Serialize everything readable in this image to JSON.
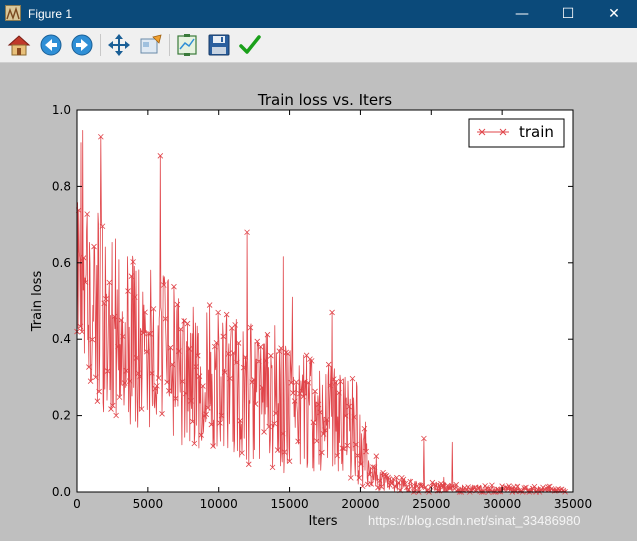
{
  "window": {
    "title": "Figure 1",
    "controls": {
      "minimize": "—",
      "maximize": "☐",
      "close": "✕"
    }
  },
  "toolbar": {
    "items": [
      {
        "name": "home-icon",
        "tooltip": "Home"
      },
      {
        "name": "back-icon",
        "tooltip": "Back"
      },
      {
        "name": "forward-icon",
        "tooltip": "Forward"
      },
      {
        "name": "pan-icon",
        "tooltip": "Pan"
      },
      {
        "name": "zoom-icon",
        "tooltip": "Zoom"
      },
      {
        "name": "subplots-icon",
        "tooltip": "Subplots"
      },
      {
        "name": "save-icon",
        "tooltip": "Save"
      },
      {
        "name": "edit-axis-icon",
        "tooltip": "Edit"
      }
    ]
  },
  "chart_data": {
    "type": "line",
    "title": "Train loss  vs. Iters",
    "xlabel": "Iters",
    "ylabel": "Train loss",
    "xlim": [
      0,
      35000
    ],
    "ylim": [
      0,
      1.0
    ],
    "xticks": [
      "0",
      "5000",
      "10000",
      "15000",
      "20000",
      "25000",
      "30000",
      "35000"
    ],
    "yticks": [
      "0.0",
      "0.2",
      "0.4",
      "0.6",
      "0.8",
      "1.0"
    ],
    "legend": {
      "placement": "top-right",
      "entries": [
        "train"
      ]
    },
    "grid": false,
    "series": [
      {
        "name": "train",
        "color": "#e0454a",
        "marker": "x",
        "x": [
          0,
          500,
          1000,
          1500,
          2000,
          3000,
          4000,
          5000,
          6000,
          7000,
          8000,
          9000,
          10000,
          11000,
          12000,
          13000,
          14000,
          15000,
          16000,
          17000,
          18000,
          19000,
          19800,
          20500,
          21500,
          22500,
          23500,
          24500,
          25500,
          26500,
          27500,
          28500,
          29500,
          30500,
          31500,
          32500,
          33500,
          34500
        ],
        "y": [
          0.62,
          0.58,
          0.52,
          0.48,
          0.45,
          0.42,
          0.4,
          0.37,
          0.35,
          0.33,
          0.31,
          0.3,
          0.28,
          0.27,
          0.26,
          0.25,
          0.23,
          0.22,
          0.21,
          0.2,
          0.19,
          0.18,
          0.16,
          0.06,
          0.03,
          0.02,
          0.015,
          0.012,
          0.01,
          0.01,
          0.008,
          0.008,
          0.007,
          0.006,
          0.006,
          0.005,
          0.005,
          0.004
        ],
        "spread": [
          0.2,
          0.25,
          0.25,
          0.25,
          0.25,
          0.24,
          0.23,
          0.22,
          0.22,
          0.21,
          0.2,
          0.2,
          0.2,
          0.2,
          0.19,
          0.19,
          0.18,
          0.17,
          0.17,
          0.16,
          0.15,
          0.15,
          0.14,
          0.05,
          0.03,
          0.02,
          0.02,
          0.015,
          0.015,
          0.015,
          0.012,
          0.012,
          0.012,
          0.01,
          0.01,
          0.01,
          0.008,
          0.006
        ],
        "peaks": [
          {
            "x": 1700,
            "y": 0.93
          },
          {
            "x": 5900,
            "y": 0.88
          },
          {
            "x": 12000,
            "y": 0.68
          },
          {
            "x": 15200,
            "y": 0.51
          },
          {
            "x": 18000,
            "y": 0.47
          },
          {
            "x": 24500,
            "y": 0.14
          },
          {
            "x": 26500,
            "y": 0.13
          }
        ]
      }
    ]
  },
  "watermark": "https://blog.csdn.net/sinat_33486980"
}
